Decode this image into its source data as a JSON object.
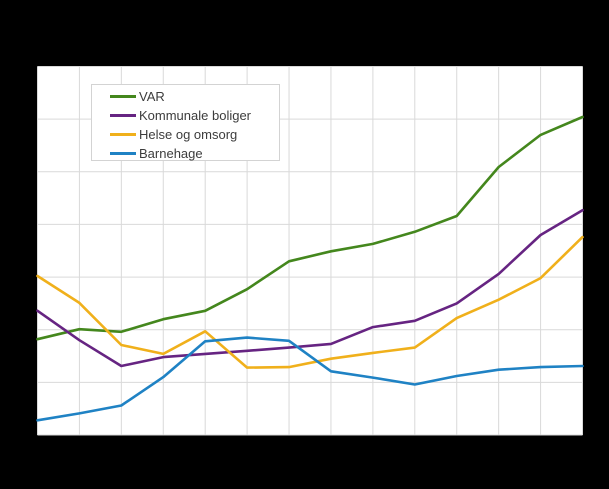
{
  "background_color": "#000000",
  "plot": {
    "background_color": "#ffffff",
    "gridline_color": "#d9d9d9",
    "border_color": "#d9d9d9"
  },
  "legend": {
    "position": "top-left",
    "background_color": "#ffffff",
    "border_color": "#d3d3d3",
    "text_color": "#3c3c3c"
  },
  "chart_data": {
    "type": "line",
    "title": "",
    "xlabel": "",
    "ylabel": "",
    "grid": true,
    "legend_position": "top-left",
    "axis_tick_labels_visible": false,
    "x_gridlines": 14,
    "y_gridlines": 8,
    "x": [
      0,
      1,
      2,
      3,
      4,
      5,
      6,
      7,
      8,
      9,
      10,
      11,
      12,
      13
    ],
    "y_unit": "gridline-units: 0 = bottom gridline, 7 = top gridline (no numeric axis labels are visible in the image)",
    "ylim": [
      0,
      7
    ],
    "series": [
      {
        "name": "VAR",
        "color": "#44871d",
        "values": [
          1.82,
          2.01,
          1.96,
          2.2,
          2.36,
          2.77,
          3.3,
          3.49,
          3.63,
          3.86,
          4.16,
          5.09,
          5.7,
          6.04
        ]
      },
      {
        "name": "Kommunale boliger",
        "color": "#662482",
        "values": [
          2.36,
          1.8,
          1.31,
          1.48,
          1.54,
          1.6,
          1.66,
          1.73,
          2.05,
          2.17,
          2.5,
          3.06,
          3.8,
          4.27
        ]
      },
      {
        "name": "Helse og omsorg",
        "color": "#f0b01b",
        "values": [
          3.02,
          2.51,
          1.71,
          1.54,
          1.97,
          1.28,
          1.29,
          1.45,
          1.56,
          1.66,
          2.22,
          2.57,
          2.98,
          3.76
        ]
      },
      {
        "name": "Barnehage",
        "color": "#1f82c4",
        "values": [
          0.28,
          0.41,
          0.56,
          1.1,
          1.78,
          1.85,
          1.79,
          1.21,
          1.09,
          0.96,
          1.12,
          1.24,
          1.29,
          1.31
        ]
      }
    ]
  }
}
